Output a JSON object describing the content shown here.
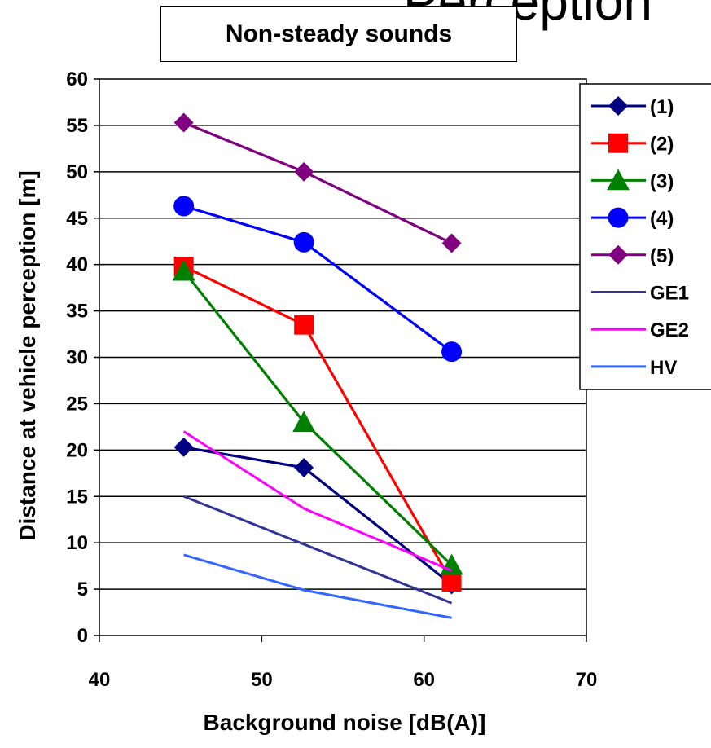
{
  "partial_title": "Perception",
  "chart_data": {
    "type": "line",
    "title": "Non-steady sounds",
    "xlabel": "Background noise  [dB(A)]",
    "ylabel": "Distance at vehicle perception  [m]",
    "xlim": [
      40,
      70
    ],
    "ylim": [
      0,
      60
    ],
    "xticks": [
      40,
      50,
      60,
      70
    ],
    "yticks": [
      0,
      5,
      10,
      15,
      20,
      25,
      30,
      35,
      40,
      45,
      50,
      55,
      60
    ],
    "grid": "horizontal",
    "legend_position": "right",
    "series": [
      {
        "name": "(1)",
        "color": "#000080",
        "marker": "diamond",
        "x": [
          45.2,
          52.6,
          61.7
        ],
        "y": [
          20.3,
          18.1,
          5.5
        ]
      },
      {
        "name": "(2)",
        "color": "#ff0000",
        "marker": "square",
        "x": [
          45.2,
          52.6,
          61.7
        ],
        "y": [
          39.8,
          33.5,
          5.8
        ]
      },
      {
        "name": "(3)",
        "color": "#008000",
        "marker": "triangle",
        "x": [
          45.2,
          52.6,
          61.7
        ],
        "y": [
          39.3,
          23.0,
          7.6
        ]
      },
      {
        "name": "(4)",
        "color": "#0000ff",
        "marker": "circle",
        "x": [
          45.2,
          52.6,
          61.7
        ],
        "y": [
          46.3,
          42.4,
          30.6
        ]
      },
      {
        "name": "(5)",
        "color": "#800080",
        "marker": "diamond",
        "x": [
          45.2,
          52.6,
          61.7
        ],
        "y": [
          55.3,
          50.0,
          42.3
        ]
      },
      {
        "name": "GE1",
        "color": "#333399",
        "marker": "none",
        "x": [
          45.2,
          61.7
        ],
        "y": [
          15.0,
          3.5
        ]
      },
      {
        "name": "GE2",
        "color": "#ff00ff",
        "marker": "none",
        "x": [
          45.2,
          52.6,
          61.7
        ],
        "y": [
          22.0,
          13.7,
          7.0
        ]
      },
      {
        "name": "HV",
        "color": "#3366ff",
        "marker": "none",
        "x": [
          45.2,
          52.6,
          61.7
        ],
        "y": [
          8.7,
          4.9,
          1.9
        ]
      }
    ]
  }
}
